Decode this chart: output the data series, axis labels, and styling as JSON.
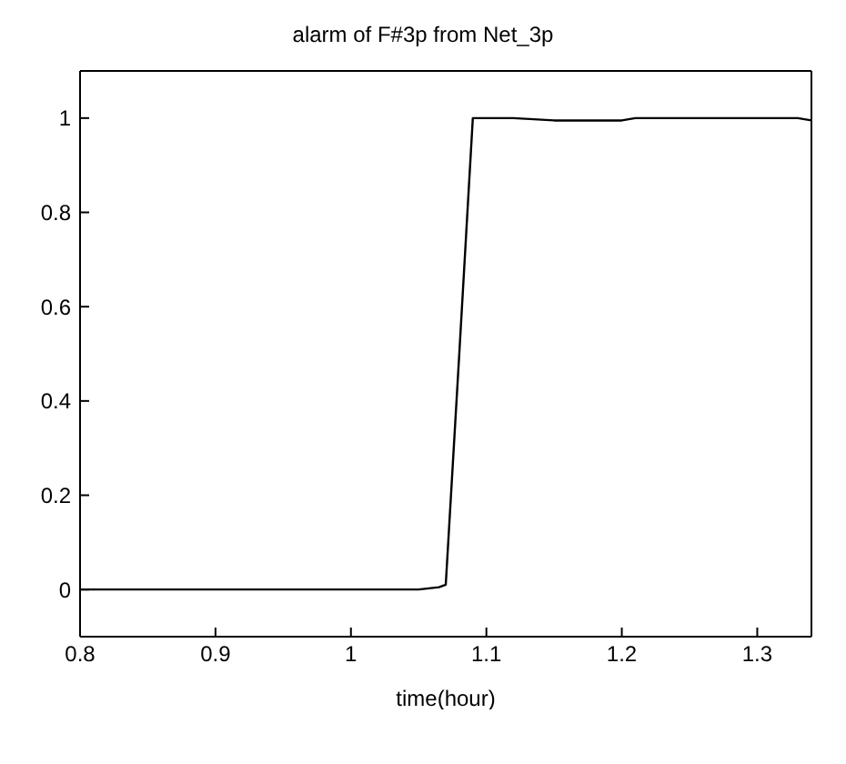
{
  "chart_data": {
    "type": "line",
    "title": "alarm of F#3p from Net_3p",
    "xlabel": "time(hour)",
    "x": [
      0.8,
      0.9,
      1.0,
      1.05,
      1.065,
      1.07,
      1.08,
      1.09,
      1.1,
      1.12,
      1.15,
      1.2,
      1.21,
      1.25,
      1.3,
      1.33,
      1.34
    ],
    "values": [
      0,
      0,
      0,
      0,
      0.005,
      0.01,
      0.5,
      1.0,
      1.0,
      1.0,
      0.995,
      0.995,
      1.0,
      1.0,
      1.0,
      1.0,
      0.995
    ],
    "color": "#000000",
    "xlim": [
      0.8,
      1.34
    ],
    "xticks": [
      0.8,
      0.9,
      1,
      1.1,
      1.2,
      1.3
    ],
    "ylim": [
      -0.1,
      1.1
    ],
    "yticks": [
      0,
      0.2,
      0.4,
      0.6,
      0.8,
      1
    ],
    "grid": false,
    "marker": "none",
    "line_style": "solid"
  }
}
